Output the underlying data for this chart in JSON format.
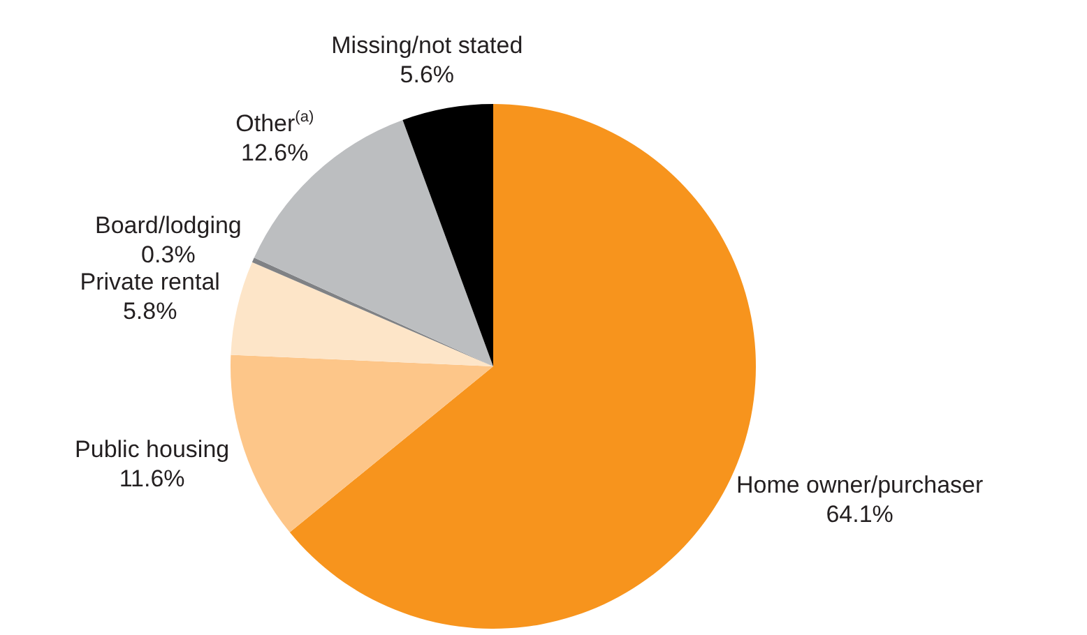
{
  "chart_data": {
    "type": "pie",
    "categories": [
      "Home owner/purchaser",
      "Public housing",
      "Private rental",
      "Board/lodging",
      "Other$^{(a)}$",
      "Missing/not stated"
    ],
    "values": [
      64.1,
      11.6,
      5.8,
      0.3,
      12.6,
      5.6
    ],
    "colors": [
      "#f7941d",
      "#fdc689",
      "#fde5c8",
      "#808285",
      "#bcbec0",
      "#000000"
    ],
    "value_labels": [
      "64.1%",
      "11.6%",
      "5.8%",
      "0.3%",
      "12.6%",
      "5.6%"
    ],
    "legend": false
  }
}
